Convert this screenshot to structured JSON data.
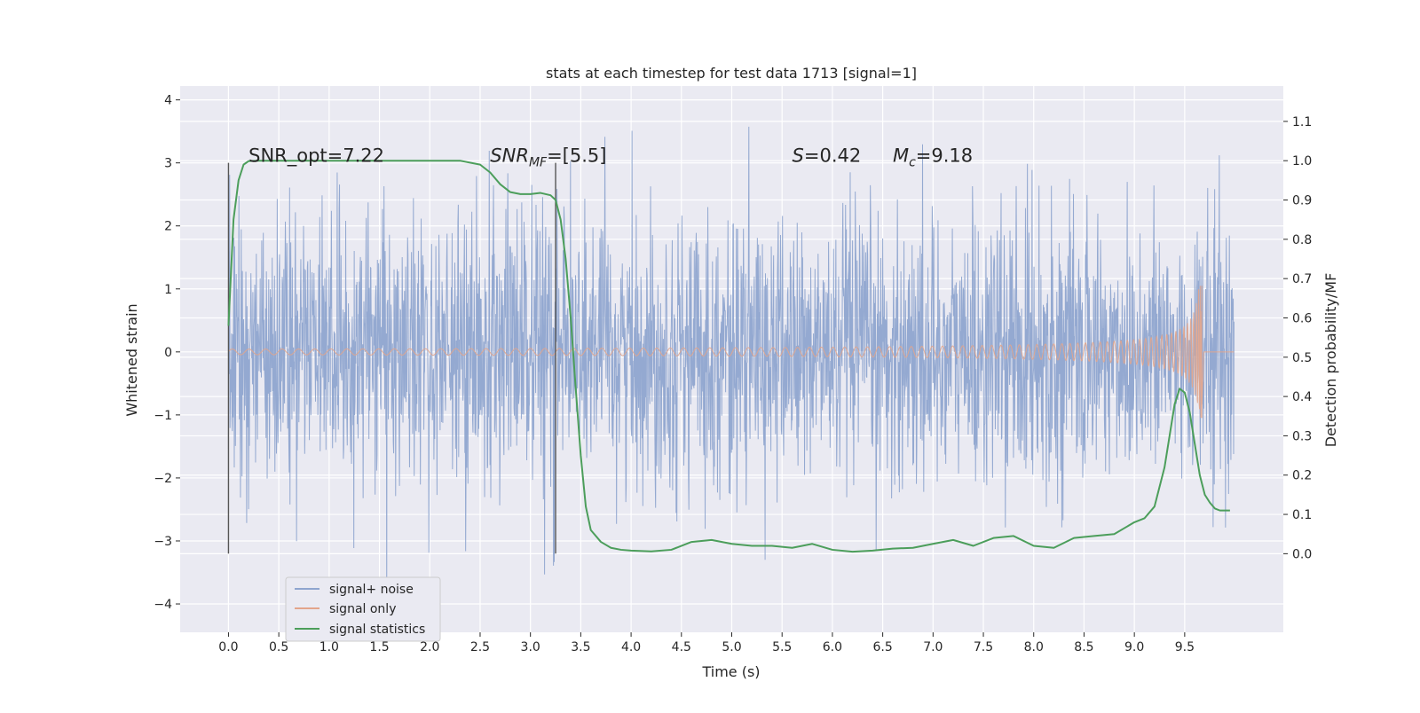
{
  "chart_data": {
    "type": "line",
    "title": "stats at each timestep for test data 1713 [signal=1]",
    "xlabel": "Time (s)",
    "ylabel_left": "Whitened strain",
    "ylabel_right": "Detection probability/MF",
    "xlim": [
      -0.48,
      10.48
    ],
    "ylim_left": [
      -4.45,
      4.22
    ],
    "ylim_right": [
      -0.2,
      1.19
    ],
    "x_ticks": [
      "0.0",
      "0.5",
      "1.0",
      "1.5",
      "2.0",
      "2.5",
      "3.0",
      "3.5",
      "4.0",
      "4.5",
      "5.0",
      "5.5",
      "6.0",
      "6.5",
      "7.0",
      "7.5",
      "8.0",
      "8.5",
      "9.0",
      "9.5"
    ],
    "y_ticks_left": [
      "−4",
      "−3",
      "−2",
      "−1",
      "0",
      "1",
      "2",
      "3",
      "4"
    ],
    "y_ticks_right": [
      "0.0",
      "0.1",
      "0.2",
      "0.3",
      "0.4",
      "0.5",
      "0.6",
      "0.7",
      "0.8",
      "0.9",
      "1.0",
      "1.1"
    ],
    "grid": true,
    "legend_position": "lower-left",
    "annotations": [
      {
        "label": "SNR_opt",
        "value": "=7.22",
        "x": 0.2
      },
      {
        "label": "SNR_MF",
        "value": "=[5.5]",
        "x": 2.6
      },
      {
        "label": "S",
        "value": "=0.42",
        "x": 5.6
      },
      {
        "label": "M_c",
        "value": "=9.18",
        "x": 6.6
      }
    ],
    "vertical_markers_x": [
      0.0,
      3.25
    ],
    "vertical_marker_range": [
      -3.2,
      3.0
    ],
    "series": [
      {
        "name": "signal+ noise",
        "color": "#8fa5cf",
        "axis": "left",
        "kind": "noise",
        "x_range": [
          0.0,
          9.99
        ],
        "std": 1.0
      },
      {
        "name": "signal only",
        "color": "#e3a58b",
        "axis": "left",
        "kind": "chirp",
        "x_range": [
          0.0,
          9.67
        ],
        "peak": 1.05
      },
      {
        "name": "signal statistics",
        "color": "#4c9e5b",
        "axis": "right",
        "x": [
          0.0,
          0.05,
          0.1,
          0.15,
          0.2,
          0.3,
          0.5,
          1.0,
          1.5,
          2.0,
          2.3,
          2.5,
          2.6,
          2.7,
          2.8,
          2.9,
          3.0,
          3.1,
          3.2,
          3.25,
          3.3,
          3.35,
          3.4,
          3.45,
          3.5,
          3.55,
          3.6,
          3.7,
          3.8,
          3.9,
          4.0,
          4.2,
          4.4,
          4.6,
          4.8,
          5.0,
          5.2,
          5.4,
          5.6,
          5.8,
          6.0,
          6.2,
          6.4,
          6.6,
          6.8,
          7.0,
          7.2,
          7.4,
          7.6,
          7.8,
          8.0,
          8.2,
          8.4,
          8.6,
          8.8,
          9.0,
          9.1,
          9.2,
          9.3,
          9.4,
          9.45,
          9.5,
          9.55,
          9.6,
          9.65,
          9.7,
          9.75,
          9.8,
          9.85,
          9.9,
          9.95
        ],
        "y": [
          0.58,
          0.85,
          0.95,
          0.99,
          0.999,
          1.0,
          1.0,
          1.0,
          1.0,
          1.0,
          1.0,
          0.99,
          0.97,
          0.94,
          0.92,
          0.915,
          0.915,
          0.918,
          0.912,
          0.9,
          0.85,
          0.75,
          0.6,
          0.42,
          0.25,
          0.12,
          0.06,
          0.03,
          0.015,
          0.01,
          0.008,
          0.006,
          0.01,
          0.03,
          0.035,
          0.025,
          0.02,
          0.02,
          0.015,
          0.025,
          0.01,
          0.005,
          0.008,
          0.013,
          0.015,
          0.025,
          0.035,
          0.02,
          0.04,
          0.045,
          0.02,
          0.015,
          0.04,
          0.045,
          0.05,
          0.08,
          0.09,
          0.12,
          0.22,
          0.38,
          0.42,
          0.41,
          0.36,
          0.28,
          0.2,
          0.15,
          0.13,
          0.115,
          0.11,
          0.11,
          0.11
        ]
      }
    ]
  }
}
